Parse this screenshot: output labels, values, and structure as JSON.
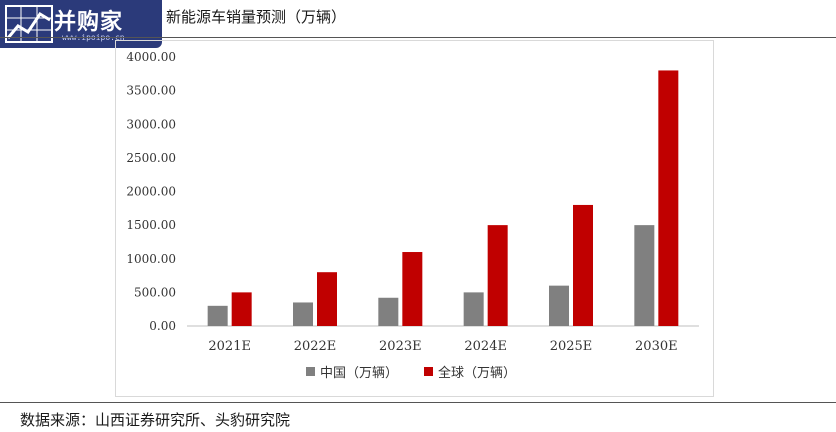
{
  "logo": {
    "brand": "并购家",
    "url": "www.ipoipo.cn"
  },
  "title": "新能源车销量预测（万辆）",
  "source": "数据来源：山西证券研究所、头豹研究院",
  "chart_data": {
    "type": "bar",
    "categories": [
      "2021E",
      "2022E",
      "2023E",
      "2024E",
      "2025E",
      "2030E"
    ],
    "series": [
      {
        "name": "中国（万辆）",
        "color": "#808080",
        "values": [
          300,
          350,
          420,
          500,
          600,
          1500
        ]
      },
      {
        "name": "全球（万辆）",
        "color": "#c00000",
        "values": [
          500,
          800,
          1100,
          1500,
          1800,
          3800
        ]
      }
    ],
    "yticks": [
      "0.00",
      "500.00",
      "1000.00",
      "1500.00",
      "2000.00",
      "2500.00",
      "3000.00",
      "3500.00",
      "4000.00"
    ],
    "ylim": [
      0,
      4000
    ],
    "legend": "bottom"
  }
}
